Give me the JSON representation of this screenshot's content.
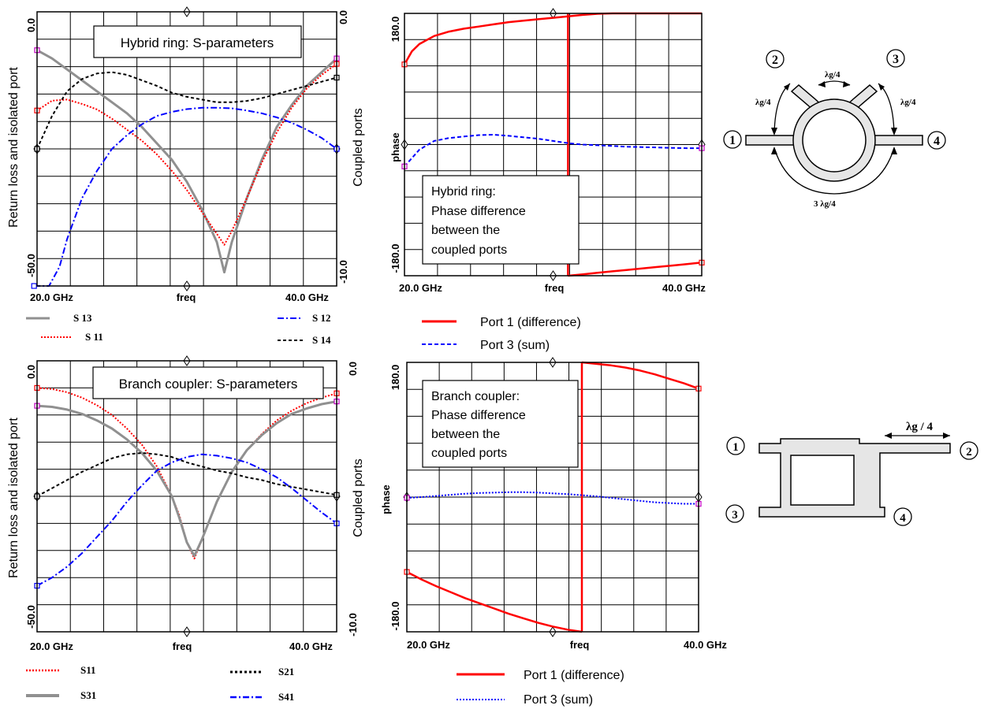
{
  "colors": {
    "red": "#ff0000",
    "blue": "#0000ff",
    "gray": "#909090",
    "black": "#000000",
    "magenta": "#c000c0"
  },
  "chart_data": [
    {
      "id": "ring_s",
      "type": "line",
      "title": "Hybrid ring: S-parameters",
      "xlabel": "freq",
      "x_ticks": [
        "20.0  GHz",
        "40.0  GHz"
      ],
      "xlim": [
        20,
        40
      ],
      "ylabel_left": "Return loss and isolated port",
      "ylabel_right": "Coupled ports",
      "left_ticks": [
        "0.0",
        "-50.0"
      ],
      "right_ticks": [
        "0.0",
        "-10.0"
      ],
      "ylim_left": [
        -50,
        0
      ],
      "ylim_right": [
        -10,
        0
      ],
      "grid": true,
      "legend": [
        {
          "label": "S 13",
          "series": "S13"
        },
        {
          "label": "S 12",
          "series": "S12"
        },
        {
          "label": "S 11",
          "series": "S11"
        },
        {
          "label": "S 14",
          "series": "S14"
        }
      ],
      "series": [
        {
          "name": "S13",
          "axis": "left",
          "color": "#909090",
          "dash": "",
          "width": 3,
          "marker": "#c000c0",
          "x": [
            20,
            21,
            22,
            23,
            24,
            25,
            26,
            27,
            28,
            29,
            30,
            31,
            32,
            32.5,
            33,
            34,
            35,
            36,
            37,
            38,
            39,
            40
          ],
          "y": [
            -7,
            -8.5,
            -10.5,
            -12.5,
            -14.5,
            -16.5,
            -18.5,
            -21,
            -24,
            -27,
            -31,
            -36,
            -42,
            -47.5,
            -42,
            -34,
            -27,
            -21,
            -17,
            -13.5,
            -11,
            -8.5
          ]
        },
        {
          "name": "S11",
          "axis": "left",
          "color": "#ff0000",
          "dash": "2,2",
          "width": 2,
          "marker": "#ff0000",
          "x": [
            20,
            21,
            22,
            23,
            24,
            25,
            26,
            27,
            28,
            29,
            30,
            31,
            32,
            32.5,
            33,
            34,
            35,
            36,
            37,
            38,
            39,
            40
          ],
          "y": [
            -18,
            -16.2,
            -16,
            -16.8,
            -17.8,
            -19.5,
            -21.5,
            -23.5,
            -26,
            -29,
            -32.5,
            -36.5,
            -40.5,
            -42.5,
            -40,
            -34,
            -27.5,
            -22,
            -17.5,
            -14,
            -11.5,
            -9.5
          ]
        },
        {
          "name": "S12",
          "axis": "right",
          "color": "#0000ff",
          "dash": "8,3,2,3",
          "width": 2,
          "marker": "#0000ff",
          "x": [
            19.8,
            20.8,
            21.5,
            22,
            23,
            24,
            25,
            26,
            27,
            28,
            29,
            30,
            31,
            32,
            33,
            34,
            35,
            36,
            37,
            38,
            39,
            40
          ],
          "y": [
            -10,
            -10,
            -9.3,
            -8.3,
            -6.8,
            -5.8,
            -5,
            -4.5,
            -4.1,
            -3.8,
            -3.65,
            -3.55,
            -3.5,
            -3.5,
            -3.52,
            -3.6,
            -3.7,
            -3.85,
            -4.05,
            -4.3,
            -4.6,
            -5
          ]
        },
        {
          "name": "S14",
          "axis": "right",
          "color": "#000000",
          "dash": "4,3",
          "width": 2,
          "marker": "#000000",
          "x": [
            20,
            21,
            22,
            23,
            24,
            25,
            26,
            27,
            28,
            29,
            30,
            31,
            32,
            33,
            34,
            35,
            36,
            37,
            38,
            39,
            40
          ],
          "y": [
            -5,
            -3.8,
            -2.9,
            -2.45,
            -2.25,
            -2.2,
            -2.3,
            -2.5,
            -2.7,
            -2.95,
            -3.1,
            -3.2,
            -3.3,
            -3.3,
            -3.25,
            -3.15,
            -3,
            -2.85,
            -2.7,
            -2.55,
            -2.4
          ]
        }
      ]
    },
    {
      "id": "ring_p",
      "type": "line",
      "title": "",
      "annotation": [
        "Hybrid ring:",
        "Phase difference",
        "between the",
        "coupled ports"
      ],
      "xlabel": "freq",
      "x_ticks": [
        "20.0  GHz",
        "40.0  GHz"
      ],
      "xlim": [
        20,
        40
      ],
      "ylabel": "phase",
      "left_ticks": [
        "180.0",
        "-180.0"
      ],
      "ylim": [
        -180,
        180
      ],
      "grid": true,
      "legend": [
        {
          "label": "Port 1 (difference)",
          "series": "Port1"
        },
        {
          "label": "Port 3 (sum)",
          "series": "Port3"
        }
      ],
      "series": [
        {
          "name": "Port1",
          "color": "#ff0000",
          "dash": "",
          "width": 2.5,
          "marker": "#ff0000",
          "x": [
            20,
            20.5,
            21,
            22,
            23,
            24,
            25,
            26,
            27,
            28,
            29,
            30,
            31,
            32,
            33,
            34,
            35,
            36,
            37,
            38,
            39,
            40
          ],
          "y": [
            110,
            128,
            138,
            149,
            155,
            159,
            162,
            165,
            168,
            170,
            172,
            174,
            176,
            178,
            179.5,
            180,
            180,
            180,
            180,
            180,
            180,
            180
          ],
          "x2": [
            31,
            31
          ],
          "y2": [
            180,
            -180
          ],
          "x3": [
            31,
            32,
            33,
            34,
            35,
            36,
            37,
            38,
            39,
            40
          ],
          "y3": [
            -180,
            -178,
            -176,
            -174,
            -172,
            -170,
            -168,
            -166,
            -164,
            -162
          ]
        },
        {
          "name": "Port3",
          "color": "#0000ff",
          "dash": "5,3",
          "width": 2,
          "marker": "#c000c0",
          "x": [
            20,
            21,
            22,
            23,
            24,
            25,
            26,
            27,
            28,
            29,
            30,
            31,
            32,
            33,
            34,
            35,
            36,
            37,
            38,
            39,
            40
          ],
          "y": [
            -30,
            -7,
            5,
            9,
            11,
            13,
            13.5,
            12,
            10,
            8,
            5,
            2,
            0,
            -1,
            -2,
            -3,
            -3.5,
            -4,
            -4.5,
            -5,
            -5
          ]
        }
      ]
    },
    {
      "id": "branch_s",
      "type": "line",
      "title": "Branch coupler: S-parameters",
      "xlabel": "freq",
      "x_ticks": [
        "20.0  GHz",
        "40.0  GHz"
      ],
      "xlim": [
        20,
        40
      ],
      "ylabel_left": "Return loss and isolated port",
      "ylabel_right": "Coupled ports",
      "left_ticks": [
        "0.0",
        "-50.0"
      ],
      "right_ticks": [
        "0.0",
        "-10.0"
      ],
      "ylim_left": [
        -50,
        0
      ],
      "ylim_right": [
        -10,
        0
      ],
      "grid": true,
      "legend": [
        {
          "label": "S11",
          "series": "S11"
        },
        {
          "label": "S21",
          "series": "S21"
        },
        {
          "label": "S31",
          "series": "S31"
        },
        {
          "label": "S41",
          "series": "S41"
        }
      ],
      "series": [
        {
          "name": "S11",
          "axis": "left",
          "color": "#ff0000",
          "dash": "2,2",
          "width": 2,
          "marker": "#ff0000",
          "x": [
            20,
            21,
            22,
            23,
            24,
            25,
            26,
            27,
            28,
            29,
            29.5,
            30,
            30.5,
            31,
            32,
            33,
            34,
            35,
            36,
            37,
            38,
            39,
            40
          ],
          "y": [
            -5,
            -5.2,
            -5.8,
            -6.8,
            -8.2,
            -10,
            -12.5,
            -15.5,
            -19.5,
            -25,
            -28.5,
            -33.5,
            -36.5,
            -33,
            -26,
            -20.5,
            -16.5,
            -13.5,
            -11,
            -9.2,
            -7.8,
            -6.8,
            -6
          ]
        },
        {
          "name": "S31",
          "axis": "left",
          "color": "#909090",
          "dash": "",
          "width": 3,
          "marker": "#c000c0",
          "x": [
            20,
            21,
            22,
            23,
            24,
            25,
            26,
            27,
            28,
            29,
            29.5,
            30,
            30.5,
            31,
            32,
            33,
            34,
            35,
            36,
            37,
            38,
            39,
            40
          ],
          "y": [
            -8.3,
            -8.5,
            -9,
            -9.8,
            -11,
            -12.5,
            -14.5,
            -17,
            -20.3,
            -25,
            -29,
            -33.5,
            -36,
            -33,
            -26,
            -20.5,
            -16.5,
            -13.7,
            -11.5,
            -9.8,
            -8.8,
            -8,
            -7.5
          ]
        },
        {
          "name": "S21",
          "axis": "right",
          "color": "#000000",
          "dash": "4,3",
          "width": 2,
          "marker": "#000000",
          "x": [
            20,
            21,
            22,
            23,
            24,
            25,
            26,
            27,
            28,
            29,
            30,
            31,
            32,
            33,
            34,
            35,
            36,
            37,
            38,
            39,
            40
          ],
          "y": [
            -5,
            -4.7,
            -4.4,
            -4.1,
            -3.85,
            -3.6,
            -3.45,
            -3.4,
            -3.45,
            -3.55,
            -3.75,
            -3.9,
            -4.05,
            -4.15,
            -4.3,
            -4.4,
            -4.55,
            -4.65,
            -4.75,
            -4.85,
            -4.95
          ]
        },
        {
          "name": "S41",
          "axis": "right",
          "color": "#0000ff",
          "dash": "8,3,2,3",
          "width": 2,
          "marker": "#0000ff",
          "x": [
            20,
            21,
            22,
            23,
            24,
            25,
            26,
            27,
            28,
            29,
            30,
            31,
            32,
            33,
            34,
            35,
            36,
            37,
            38,
            39,
            40
          ],
          "y": [
            -8.3,
            -8,
            -7.6,
            -7.1,
            -6.5,
            -5.9,
            -5.2,
            -4.6,
            -4.05,
            -3.75,
            -3.55,
            -3.45,
            -3.5,
            -3.6,
            -3.75,
            -4,
            -4.3,
            -4.7,
            -5.15,
            -5.6,
            -6
          ]
        }
      ]
    },
    {
      "id": "branch_p",
      "type": "line",
      "title": "",
      "annotation": [
        "Branch coupler:",
        "Phase difference",
        "between the",
        "coupled ports"
      ],
      "xlabel": "freq",
      "x_ticks": [
        "20.0  GHz",
        "40.0  GHz"
      ],
      "xlim": [
        20,
        40
      ],
      "ylabel": "phase",
      "left_ticks": [
        "180.0",
        "-180.0"
      ],
      "ylim": [
        -180,
        180
      ],
      "grid": true,
      "legend": [
        {
          "label": "Port 1 (difference)",
          "series": "Port1"
        },
        {
          "label": "Port 3 (sum)",
          "series": "Port3"
        }
      ],
      "series": [
        {
          "name": "Port1",
          "color": "#ff0000",
          "dash": "",
          "width": 2.5,
          "marker": "#ff0000",
          "x": [
            20,
            21,
            22,
            23,
            24,
            25,
            26,
            27,
            28,
            29,
            30,
            31,
            32
          ],
          "y": [
            -100,
            -110,
            -119,
            -127,
            -135,
            -142,
            -149,
            -156,
            -162,
            -168,
            -173,
            -177,
            -180
          ],
          "x2": [
            32,
            32
          ],
          "y2": [
            -180,
            180
          ],
          "x3": [
            32,
            33,
            34,
            35,
            36,
            37,
            38,
            39,
            40
          ],
          "y3": [
            180,
            178,
            176,
            173,
            169,
            164,
            158,
            152,
            145
          ]
        },
        {
          "name": "Port3",
          "color": "#0000ff",
          "dash": "2,2",
          "width": 2,
          "marker": "#c000c0",
          "x": [
            20,
            21,
            22,
            23,
            24,
            25,
            26,
            27,
            28,
            29,
            30,
            31,
            32,
            33,
            34,
            35,
            36,
            37,
            38,
            39,
            40
          ],
          "y": [
            -1,
            0,
            1.5,
            3,
            4.5,
            5.5,
            6,
            6.5,
            6.5,
            6,
            5,
            4,
            2.5,
            1,
            -1,
            -3,
            -5,
            -7,
            -8,
            -9,
            -9
          ]
        }
      ]
    }
  ],
  "diagrams": {
    "ring": {
      "ports": [
        "1",
        "2",
        "3",
        "4"
      ],
      "labels": {
        "lg4_left": "λg/4",
        "lg4_top": "λg/4",
        "lg4_right": "λg/4",
        "three_lg4": "3 λg/4"
      }
    },
    "branch": {
      "ports": [
        "1",
        "2",
        "3",
        "4"
      ],
      "label": "λg / 4"
    }
  }
}
